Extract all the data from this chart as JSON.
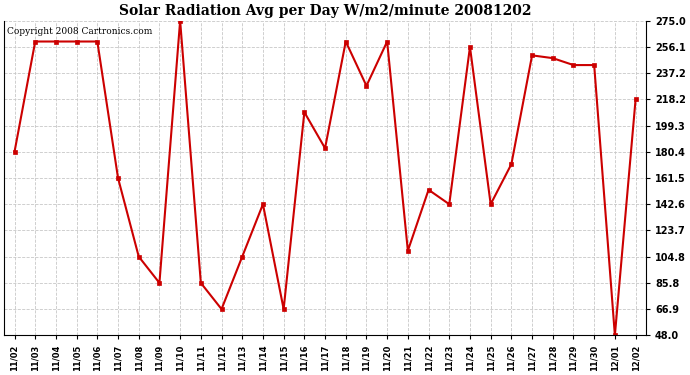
{
  "title": "Solar Radiation Avg per Day W/m2/minute 20081202",
  "copyright": "Copyright 2008 Cartronics.com",
  "dates": [
    "11/02",
    "11/03",
    "11/04",
    "11/05",
    "11/06",
    "11/07",
    "11/08",
    "11/09",
    "11/10",
    "11/11",
    "11/12",
    "11/13",
    "11/14",
    "11/15",
    "11/16",
    "11/17",
    "11/18",
    "11/19",
    "11/20",
    "11/21",
    "11/22",
    "11/23",
    "11/24",
    "11/25",
    "11/26",
    "11/27",
    "11/28",
    "11/29",
    "11/30",
    "12/01",
    "12/02"
  ],
  "values": [
    180.4,
    260.0,
    260.0,
    260.0,
    260.0,
    161.5,
    104.8,
    85.8,
    275.0,
    85.8,
    66.9,
    104.8,
    142.6,
    66.9,
    209.0,
    183.0,
    260.0,
    228.0,
    260.0,
    109.0,
    153.0,
    142.6,
    256.1,
    142.6,
    171.5,
    250.0,
    248.0,
    243.0,
    243.0,
    48.0,
    218.2
  ],
  "line_color": "#cc0000",
  "marker_color": "#cc0000",
  "bg_color": "#ffffff",
  "grid_color": "#c8c8c8",
  "yticks": [
    48.0,
    66.9,
    85.8,
    104.8,
    123.7,
    142.6,
    161.5,
    180.4,
    199.3,
    218.2,
    237.2,
    256.1,
    275.0
  ],
  "ylim": [
    48.0,
    275.0
  ],
  "title_fontsize": 10,
  "copyright_fontsize": 6.5,
  "tick_fontsize": 7,
  "xtick_fontsize": 6
}
